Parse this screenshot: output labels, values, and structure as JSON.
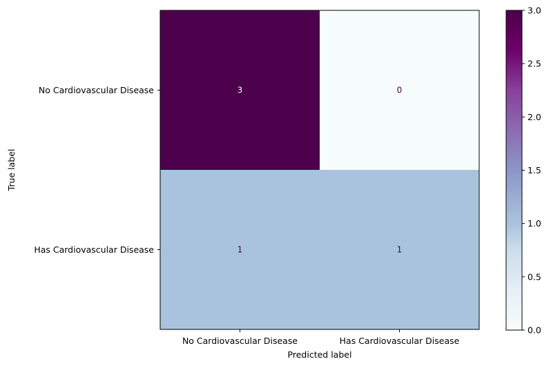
{
  "chart_data": {
    "type": "heatmap",
    "xlabel": "Predicted label",
    "ylabel": "True label",
    "x_categories": [
      "No Cardiovascular Disease",
      "Has Cardiovascular Disease"
    ],
    "y_categories": [
      "No Cardiovascular Disease",
      "Has Cardiovascular Disease"
    ],
    "values": [
      [
        3,
        0
      ],
      [
        1,
        1
      ]
    ],
    "colormap": "BuPu",
    "vmin": 0,
    "vmax": 3,
    "colorbar_ticks": [
      "0.0",
      "0.5",
      "1.0",
      "1.5",
      "2.0",
      "2.5",
      "3.0"
    ],
    "colorbar_tick_values": [
      0,
      0.5,
      1.0,
      1.5,
      2.0,
      2.5,
      3.0
    ],
    "colors": {
      "low": "#f7fcfd",
      "mid": "#a9c3de",
      "high": "#4d004b",
      "text_on_dark": "#f7fcfd",
      "text_on_light": "#4d004b"
    }
  }
}
